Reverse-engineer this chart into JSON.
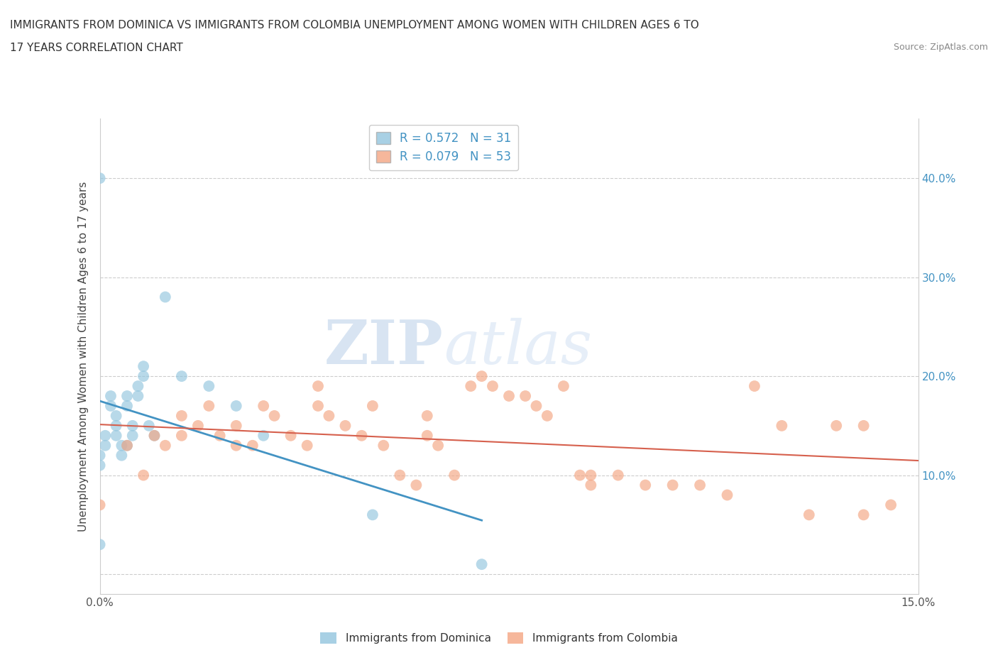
{
  "title_line1": "IMMIGRANTS FROM DOMINICA VS IMMIGRANTS FROM COLOMBIA UNEMPLOYMENT AMONG WOMEN WITH CHILDREN AGES 6 TO",
  "title_line2": "17 YEARS CORRELATION CHART",
  "source": "Source: ZipAtlas.com",
  "ylabel": "Unemployment Among Women with Children Ages 6 to 17 years",
  "xlim": [
    0.0,
    0.15
  ],
  "ylim": [
    -0.02,
    0.46
  ],
  "dominica_R": "0.572",
  "dominica_N": "31",
  "colombia_R": "0.079",
  "colombia_N": "53",
  "blue_color": "#92c5de",
  "blue_line_color": "#4393c3",
  "pink_color": "#f4a582",
  "pink_line_color": "#d6604d",
  "right_tick_color": "#4393c3",
  "watermark_zip": "ZIP",
  "watermark_atlas": "atlas",
  "dominica_x": [
    0.0,
    0.0,
    0.0,
    0.0,
    0.001,
    0.001,
    0.002,
    0.002,
    0.003,
    0.003,
    0.003,
    0.004,
    0.004,
    0.005,
    0.005,
    0.005,
    0.006,
    0.006,
    0.007,
    0.007,
    0.008,
    0.008,
    0.009,
    0.01,
    0.012,
    0.015,
    0.02,
    0.025,
    0.03,
    0.05,
    0.07
  ],
  "dominica_y": [
    0.4,
    0.12,
    0.11,
    0.03,
    0.14,
    0.13,
    0.18,
    0.17,
    0.16,
    0.15,
    0.14,
    0.13,
    0.12,
    0.18,
    0.17,
    0.13,
    0.15,
    0.14,
    0.19,
    0.18,
    0.21,
    0.2,
    0.15,
    0.14,
    0.28,
    0.2,
    0.19,
    0.17,
    0.14,
    0.06,
    0.01
  ],
  "colombia_x": [
    0.0,
    0.005,
    0.008,
    0.01,
    0.012,
    0.015,
    0.015,
    0.018,
    0.02,
    0.022,
    0.025,
    0.025,
    0.028,
    0.03,
    0.032,
    0.035,
    0.038,
    0.04,
    0.042,
    0.045,
    0.048,
    0.05,
    0.052,
    0.055,
    0.058,
    0.06,
    0.062,
    0.065,
    0.068,
    0.07,
    0.072,
    0.075,
    0.078,
    0.08,
    0.082,
    0.085,
    0.088,
    0.09,
    0.095,
    0.1,
    0.105,
    0.11,
    0.115,
    0.12,
    0.125,
    0.13,
    0.135,
    0.14,
    0.145,
    0.04,
    0.06,
    0.09,
    0.14
  ],
  "colombia_y": [
    0.07,
    0.13,
    0.1,
    0.14,
    0.13,
    0.16,
    0.14,
    0.15,
    0.17,
    0.14,
    0.15,
    0.13,
    0.13,
    0.17,
    0.16,
    0.14,
    0.13,
    0.17,
    0.16,
    0.15,
    0.14,
    0.17,
    0.13,
    0.1,
    0.09,
    0.14,
    0.13,
    0.1,
    0.19,
    0.2,
    0.19,
    0.18,
    0.18,
    0.17,
    0.16,
    0.19,
    0.1,
    0.1,
    0.1,
    0.09,
    0.09,
    0.09,
    0.08,
    0.19,
    0.15,
    0.06,
    0.15,
    0.15,
    0.07,
    0.19,
    0.16,
    0.09,
    0.06
  ]
}
